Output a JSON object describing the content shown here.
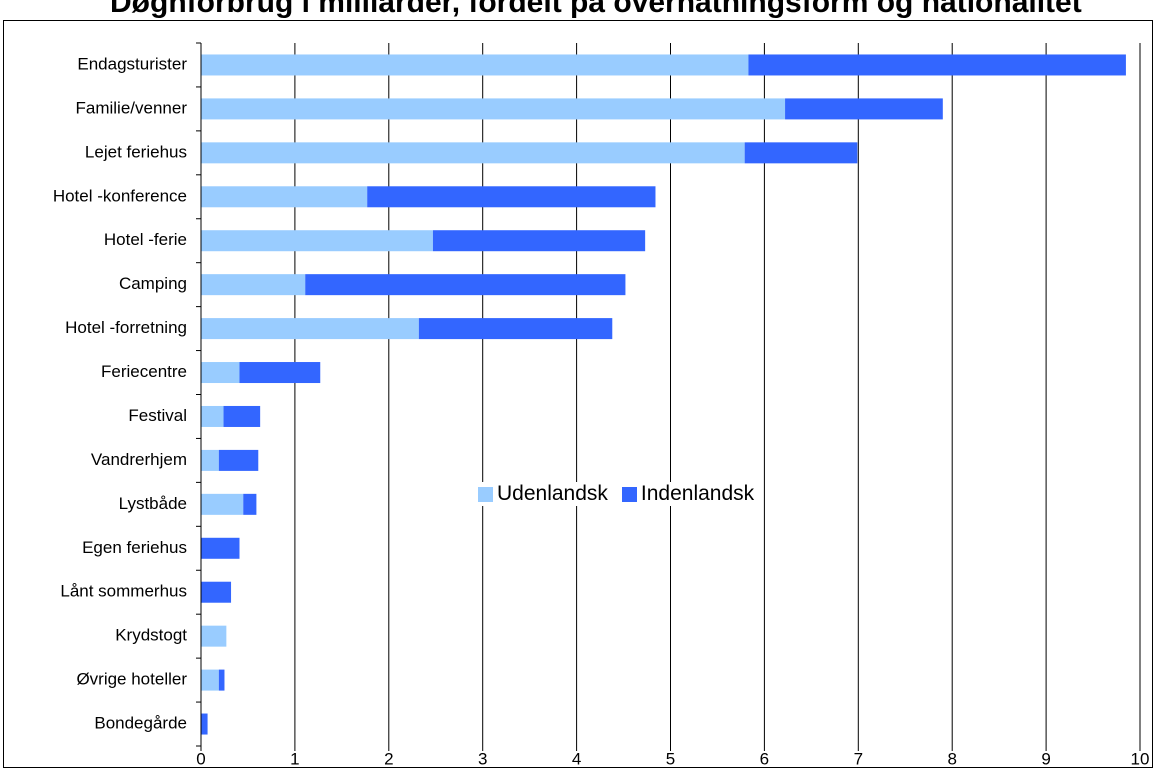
{
  "chart_data": {
    "type": "bar",
    "orientation": "horizontal",
    "stacked": true,
    "title": "Døgnforbrug i milliarder, fordelt på overnatningsform og nationalitet",
    "categories": [
      "Endagsturister",
      "Familie/venner",
      "Lejet feriehus",
      "Hotel -konference",
      "Hotel -ferie",
      "Camping",
      "Hotel -forretning",
      "Feriecentre",
      "Festival",
      "Vandrerhjem",
      "Lystbåde",
      "Egen feriehus",
      "Lånt sommerhus",
      "Krydstogt",
      "Øvrige hoteller",
      "Bondegårde"
    ],
    "series": [
      {
        "name": "Udenlandsk",
        "color": "#99ccff",
        "values": [
          5.83,
          6.22,
          5.79,
          1.77,
          2.47,
          1.11,
          2.32,
          0.41,
          0.24,
          0.19,
          0.45,
          0.0,
          0.0,
          0.27,
          0.19,
          0.0
        ]
      },
      {
        "name": "Indenlandsk",
        "color": "#3366ff",
        "values": [
          4.02,
          1.68,
          1.2,
          3.07,
          2.26,
          3.41,
          2.06,
          0.86,
          0.39,
          0.42,
          0.14,
          0.41,
          0.32,
          0.0,
          0.06,
          0.07
        ]
      }
    ],
    "xlim": [
      0,
      10
    ],
    "xticks": [
      "0",
      "1",
      "2",
      "3",
      "4",
      "5",
      "6",
      "7",
      "8",
      "9",
      "10"
    ],
    "grid": "vertical",
    "legend": "center"
  }
}
